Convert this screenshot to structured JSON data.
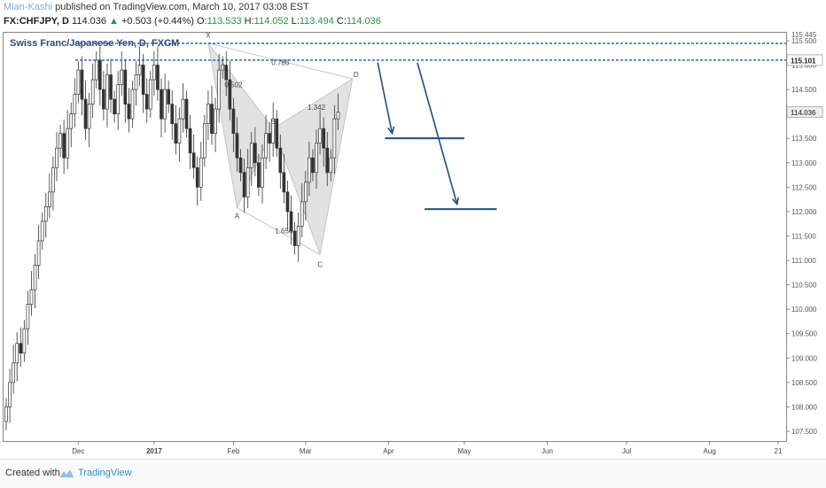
{
  "header": {
    "author": "Mian-Kashi",
    "published": "published on TradingView.com, March 10, 2017 03:08 EST",
    "symbol": "FX:CHFJPY, D",
    "last": "114.036",
    "change_arrow": "▲",
    "change": "+0.503 (+0.44%)",
    "o_label": "O:",
    "o_value": "113.533",
    "h_label": "H:",
    "h_value": "114.052",
    "l_label": "L:",
    "l_value": "113.494",
    "c_label": "C:",
    "c_value": "114.036"
  },
  "footer": {
    "created": "Created with",
    "brand": "TradingView"
  },
  "colors": {
    "up": "#1d9a3a",
    "line": "#1f4e8c",
    "pattern": "#d9d9d9",
    "candle": "#333333"
  },
  "chart_data": {
    "type": "candlestick",
    "title": "Swiss Franc/Japanese Yen, D, FXCM",
    "y_range": [
      107.3,
      115.68
    ],
    "y_ticks": [
      "107.500",
      "108.000",
      "108.500",
      "109.000",
      "109.500",
      "110.000",
      "110.500",
      "111.000",
      "111.500",
      "112.000",
      "112.500",
      "113.000",
      "113.500",
      "114.000",
      "114.500",
      "115.000",
      "115.500"
    ],
    "y_top_partial": "115.445",
    "x_ticks": [
      {
        "label": "Dec",
        "idx": 20
      },
      {
        "label": "2017",
        "idx": 41
      },
      {
        "label": "Feb",
        "idx": 63
      },
      {
        "label": "Mar",
        "idx": 83
      },
      {
        "label": "Apr",
        "idx": 106
      },
      {
        "label": "May",
        "idx": 127
      },
      {
        "label": "Jun",
        "idx": 150
      },
      {
        "label": "Jul",
        "idx": 172
      },
      {
        "label": "Aug",
        "idx": 195
      },
      {
        "label": "21",
        "idx": 214
      }
    ],
    "current_price": "114.036",
    "resistance_price": "115.101",
    "resistance_lines": [
      115.101,
      115.445
    ],
    "ohlc_close": [
      108.0,
      108.5,
      108.9,
      109.3,
      109.1,
      109.6,
      110.1,
      110.4,
      110.9,
      111.4,
      111.8,
      112.1,
      112.4,
      112.9,
      113.3,
      113.6,
      113.1,
      113.7,
      114.0,
      114.4,
      114.9,
      114.3,
      113.7,
      114.2,
      114.7,
      115.1,
      114.5,
      114.1,
      114.8,
      114.3,
      114.0,
      114.6,
      114.9,
      114.2,
      113.9,
      114.5,
      114.8,
      115.0,
      114.4,
      114.1,
      114.7,
      115.0,
      114.5,
      113.9,
      114.5,
      114.2,
      113.8,
      113.4,
      113.9,
      114.3,
      113.7,
      113.2,
      112.9,
      112.5,
      113.1,
      113.8,
      114.2,
      113.6,
      114.1,
      114.9,
      115.0,
      114.7,
      114.1,
      113.6,
      113.1,
      112.8,
      112.3,
      112.9,
      113.4,
      113.0,
      112.5,
      113.1,
      113.6,
      113.4,
      113.9,
      113.3,
      112.8,
      112.4,
      112.0,
      111.6,
      111.3,
      111.7,
      112.2,
      112.6,
      113.1,
      112.8,
      113.4,
      113.7,
      113.3,
      112.8,
      113.1,
      113.9,
      114.036
    ],
    "harmonic_pattern": {
      "points": {
        "X": [
          56,
          115.45
        ],
        "A": [
          64,
          112.08
        ],
        "B": [
          74,
          113.7
        ],
        "C": [
          87,
          111.12
        ],
        "D": [
          96,
          114.72
        ]
      },
      "ratios": [
        {
          "label": "0.502",
          "at": [
            63,
            114.55
          ]
        },
        {
          "label": "0.786",
          "at": [
            76,
            115.0
          ]
        },
        {
          "label": "1.342",
          "at": [
            86,
            114.08
          ]
        },
        {
          "label": "1.656",
          "at": [
            77,
            111.55
          ]
        }
      ]
    },
    "targets": [
      {
        "price": 113.5,
        "from_idx": 105,
        "to_idx": 127
      },
      {
        "price": 112.05,
        "from_idx": 116,
        "to_idx": 136
      }
    ],
    "arrows": [
      {
        "from": [
          103,
          115.05
        ],
        "to": [
          107,
          113.6
        ]
      },
      {
        "from": [
          114,
          115.05
        ],
        "to": [
          125,
          112.15
        ]
      }
    ]
  }
}
